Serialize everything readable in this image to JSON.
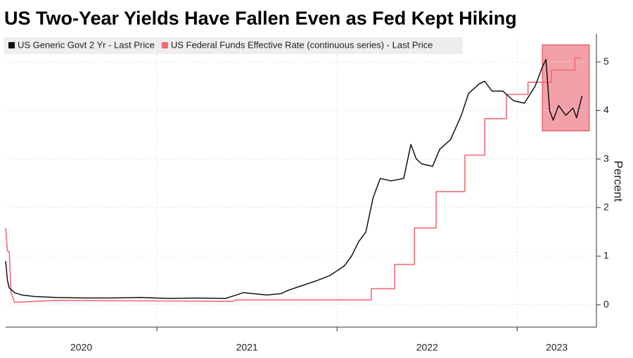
{
  "chart_data": {
    "type": "line",
    "title": "US Two-Year Yields Have Fallen Even as Fed Kept Hiking",
    "y_label": "Percent",
    "xlim": [
      2020.16,
      2023.44
    ],
    "xticks": [
      2020,
      2021,
      2022,
      2023
    ],
    "ylim": [
      -0.46,
      5.58
    ],
    "yticks": [
      0,
      1,
      2,
      3,
      4,
      5
    ],
    "grid": true,
    "highlight": {
      "x": [
        2023.14,
        2023.4
      ],
      "y": [
        3.58,
        5.35
      ],
      "color": "#f4a0a8"
    },
    "series": [
      {
        "name": "US Generic Govt 2 Yr - Last Price",
        "color": "#111111",
        "x": [
          2020.16,
          2020.17,
          2020.18,
          2020.21,
          2020.25,
          2020.32,
          2020.44,
          2020.6,
          2020.75,
          2020.91,
          2021.07,
          2021.22,
          2021.38,
          2021.44,
          2021.48,
          2021.61,
          2021.69,
          2021.73,
          2021.81,
          2021.89,
          2021.96,
          2022.04,
          2022.08,
          2022.12,
          2022.16,
          2022.2,
          2022.24,
          2022.3,
          2022.37,
          2022.41,
          2022.44,
          2022.47,
          2022.53,
          2022.57,
          2022.63,
          2022.69,
          2022.73,
          2022.79,
          2022.82,
          2022.86,
          2022.92,
          2022.98,
          2023.04,
          2023.1,
          2023.14,
          2023.16,
          2023.18,
          2023.2,
          2023.23,
          2023.27,
          2023.31,
          2023.33,
          2023.36
        ],
        "values": [
          0.9,
          0.5,
          0.35,
          0.25,
          0.2,
          0.17,
          0.15,
          0.14,
          0.14,
          0.15,
          0.13,
          0.14,
          0.13,
          0.2,
          0.25,
          0.2,
          0.23,
          0.3,
          0.4,
          0.5,
          0.6,
          0.8,
          1.0,
          1.3,
          1.5,
          2.2,
          2.6,
          2.55,
          2.6,
          3.3,
          3.0,
          2.9,
          2.85,
          3.2,
          3.4,
          3.9,
          4.35,
          4.55,
          4.6,
          4.4,
          4.4,
          4.2,
          4.15,
          4.5,
          4.9,
          5.05,
          4.0,
          3.8,
          4.1,
          3.9,
          4.05,
          3.85,
          4.3
        ]
      },
      {
        "name": "US Federal Funds Effective Rate (continuous series) - Last Price",
        "color": "#f06a78",
        "x": [
          2020.16,
          2020.17,
          2020.18,
          2020.19,
          2020.21,
          2020.44,
          2021.42,
          2021.44,
          2022.19,
          2022.19,
          2022.32,
          2022.32,
          2022.43,
          2022.43,
          2022.55,
          2022.55,
          2022.71,
          2022.71,
          2022.82,
          2022.82,
          2022.94,
          2022.94,
          2023.06,
          2023.06,
          2023.19,
          2023.19,
          2023.32,
          2023.32,
          2023.36
        ],
        "values": [
          1.58,
          1.1,
          1.1,
          0.25,
          0.05,
          0.09,
          0.07,
          0.1,
          0.1,
          0.33,
          0.33,
          0.83,
          0.83,
          1.58,
          1.58,
          2.33,
          2.33,
          3.08,
          3.08,
          3.83,
          3.83,
          4.33,
          4.33,
          4.58,
          4.58,
          4.83,
          4.83,
          5.08,
          5.08
        ]
      }
    ]
  }
}
